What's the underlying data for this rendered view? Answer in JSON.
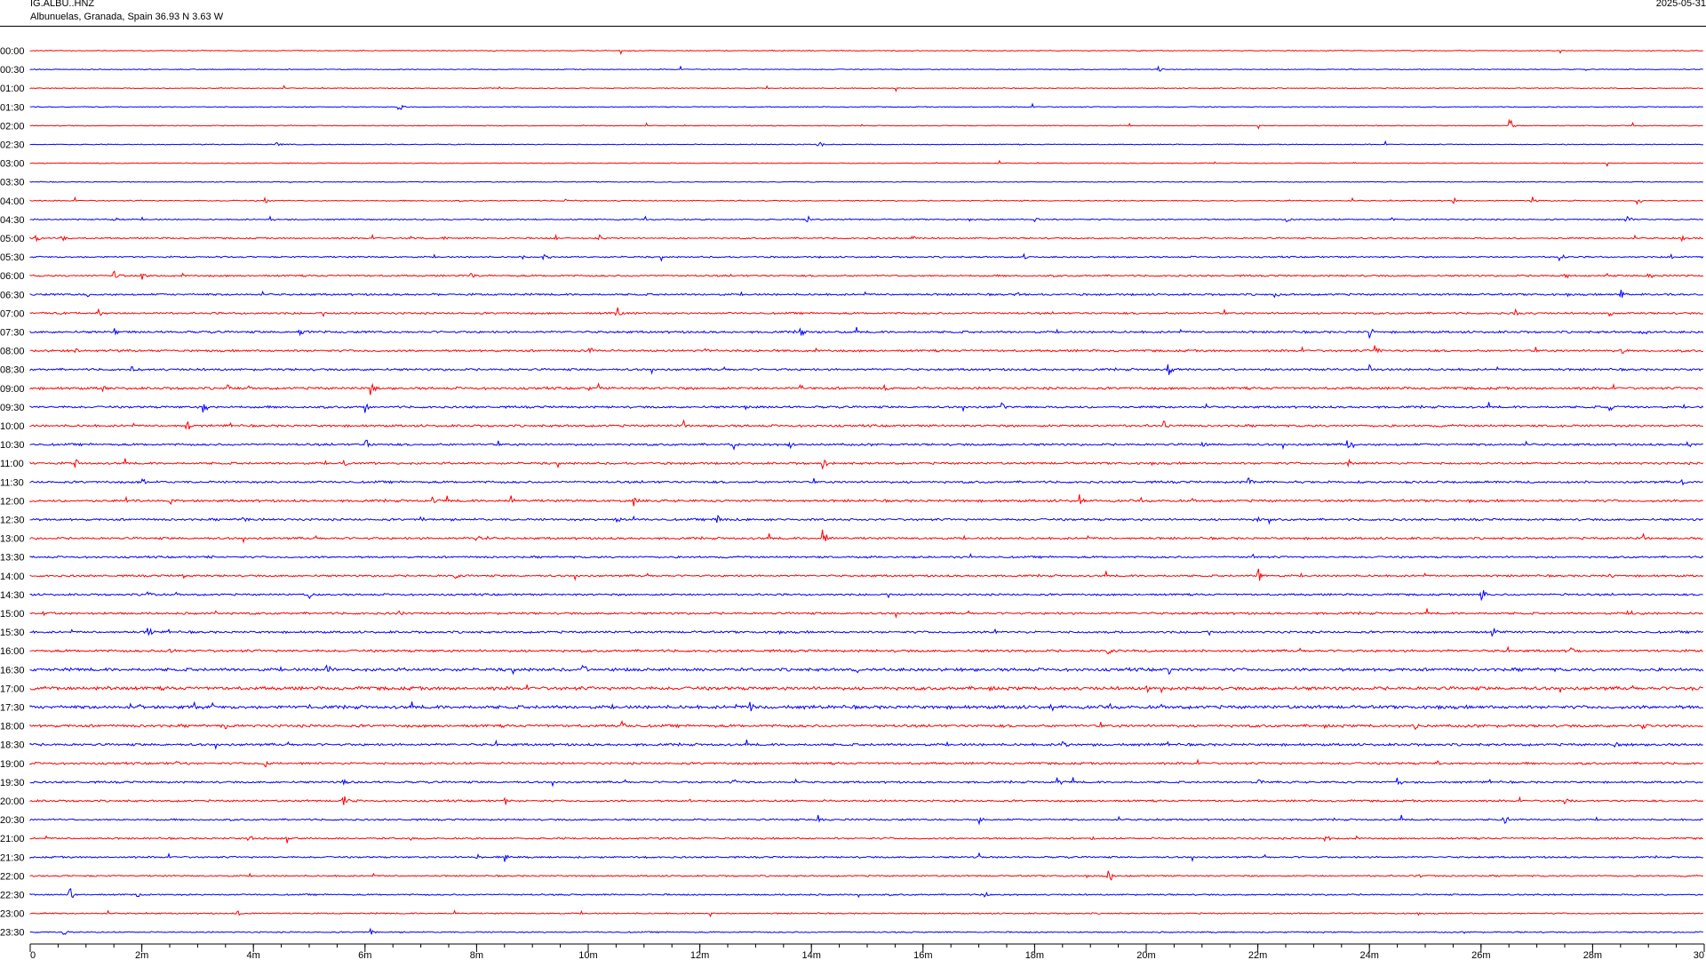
{
  "header": {
    "station": "IG.ALBU..HNZ",
    "location": "Albunuelas, Granada, Spain  36.93 N 3.63 W",
    "date": "2025-05-31"
  },
  "colors": {
    "trace_even": "#ff0000",
    "trace_odd": "#0000ff",
    "axis": "#000000",
    "background": "#ffffff"
  },
  "chart_data": {
    "type": "line",
    "title": "",
    "x_unit": "minutes",
    "xlim": [
      0,
      30
    ],
    "x_ticks": [
      {
        "value": 0,
        "label": "0"
      },
      {
        "value": 2,
        "label": "2m"
      },
      {
        "value": 4,
        "label": "4m"
      },
      {
        "value": 6,
        "label": "6m"
      },
      {
        "value": 8,
        "label": "8m"
      },
      {
        "value": 10,
        "label": "10m"
      },
      {
        "value": 12,
        "label": "12m"
      },
      {
        "value": 14,
        "label": "14m"
      },
      {
        "value": 16,
        "label": "16m"
      },
      {
        "value": 18,
        "label": "18m"
      },
      {
        "value": 20,
        "label": "20m"
      },
      {
        "value": 22,
        "label": "22m"
      },
      {
        "value": 24,
        "label": "24m"
      },
      {
        "value": 26,
        "label": "26m"
      },
      {
        "value": 28,
        "label": "28m"
      },
      {
        "value": 30,
        "label": "30"
      }
    ],
    "minor_tick_step": 0.5,
    "row_labels": [
      "00:00",
      "00:30",
      "01:00",
      "01:30",
      "02:00",
      "02:30",
      "03:00",
      "03:30",
      "04:00",
      "04:30",
      "05:00",
      "05:30",
      "06:00",
      "06:30",
      "07:00",
      "07:30",
      "08:00",
      "08:30",
      "09:00",
      "09:30",
      "10:00",
      "10:30",
      "11:00",
      "11:30",
      "12:00",
      "12:30",
      "13:00",
      "13:30",
      "14:00",
      "14:30",
      "15:00",
      "15:30",
      "16:00",
      "16:30",
      "17:00",
      "17:30",
      "18:00",
      "18:30",
      "19:00",
      "19:30",
      "20:00",
      "20:30",
      "21:00",
      "21:30",
      "22:00",
      "22:30",
      "23:00",
      "23:30"
    ],
    "noise_level": [
      0.4,
      0.4,
      0.4,
      0.4,
      0.4,
      0.4,
      0.4,
      0.4,
      0.5,
      0.6,
      0.7,
      0.7,
      0.8,
      0.9,
      0.9,
      1.0,
      1.0,
      1.0,
      1.1,
      1.0,
      1.0,
      1.0,
      1.0,
      1.0,
      1.1,
      1.0,
      1.0,
      0.9,
      0.9,
      0.9,
      1.0,
      1.0,
      1.1,
      1.4,
      1.5,
      1.5,
      1.2,
      1.1,
      1.0,
      0.9,
      0.9,
      0.8,
      0.8,
      0.8,
      0.7,
      0.7,
      0.6,
      0.6
    ],
    "events": [
      {
        "row": 1,
        "t": 20.2,
        "amp": 5
      },
      {
        "row": 1,
        "t": 24.9,
        "amp": 5
      },
      {
        "row": 3,
        "t": 6.6,
        "amp": 8
      },
      {
        "row": 4,
        "t": 26.5,
        "amp": 12
      },
      {
        "row": 5,
        "t": 4.4,
        "amp": 7
      },
      {
        "row": 5,
        "t": 14.1,
        "amp": 9
      },
      {
        "row": 6,
        "t": 23.7,
        "amp": 4
      },
      {
        "row": 8,
        "t": 4.2,
        "amp": 7
      },
      {
        "row": 8,
        "t": 9.6,
        "amp": 3
      },
      {
        "row": 8,
        "t": 25.5,
        "amp": 5
      },
      {
        "row": 8,
        "t": 26.9,
        "amp": 9
      },
      {
        "row": 8,
        "t": 28.8,
        "amp": 7
      },
      {
        "row": 9,
        "t": 1.5,
        "amp": 4
      },
      {
        "row": 9,
        "t": 4.3,
        "amp": 6
      },
      {
        "row": 9,
        "t": 13.9,
        "amp": 11
      },
      {
        "row": 9,
        "t": 18.0,
        "amp": 5
      },
      {
        "row": 9,
        "t": 22.5,
        "amp": 6
      },
      {
        "row": 9,
        "t": 24.4,
        "amp": 4
      },
      {
        "row": 9,
        "t": 28.6,
        "amp": 10
      },
      {
        "row": 10,
        "t": 0.1,
        "amp": 7
      },
      {
        "row": 10,
        "t": 0.55,
        "amp": 8
      },
      {
        "row": 10,
        "t": 6.8,
        "amp": 6
      },
      {
        "row": 10,
        "t": 7.4,
        "amp": 4
      },
      {
        "row": 10,
        "t": 9.4,
        "amp": 6
      },
      {
        "row": 10,
        "t": 10.2,
        "amp": 8
      },
      {
        "row": 10,
        "t": 15.8,
        "amp": 6
      },
      {
        "row": 10,
        "t": 29.6,
        "amp": 5
      },
      {
        "row": 11,
        "t": 3.3,
        "amp": 4
      },
      {
        "row": 11,
        "t": 8.8,
        "amp": 6
      },
      {
        "row": 11,
        "t": 9.2,
        "amp": 7
      },
      {
        "row": 11,
        "t": 17.8,
        "amp": 5
      },
      {
        "row": 11,
        "t": 27.4,
        "amp": 12
      },
      {
        "row": 11,
        "t": 29.4,
        "amp": 4
      },
      {
        "row": 12,
        "t": 1.5,
        "amp": 10
      },
      {
        "row": 12,
        "t": 2.0,
        "amp": 9
      },
      {
        "row": 12,
        "t": 7.9,
        "amp": 5
      },
      {
        "row": 12,
        "t": 27.5,
        "amp": 6
      },
      {
        "row": 12,
        "t": 29.0,
        "amp": 7
      },
      {
        "row": 13,
        "t": 1.0,
        "amp": 6
      },
      {
        "row": 13,
        "t": 7.2,
        "amp": 6
      },
      {
        "row": 13,
        "t": 17.7,
        "amp": 5
      },
      {
        "row": 13,
        "t": 22.3,
        "amp": 7
      },
      {
        "row": 13,
        "t": 28.5,
        "amp": 12
      },
      {
        "row": 14,
        "t": 1.2,
        "amp": 8
      },
      {
        "row": 14,
        "t": 10.5,
        "amp": 14
      },
      {
        "row": 14,
        "t": 26.6,
        "amp": 11
      },
      {
        "row": 14,
        "t": 28.3,
        "amp": 9
      },
      {
        "row": 15,
        "t": 1.5,
        "amp": 6
      },
      {
        "row": 15,
        "t": 4.8,
        "amp": 10
      },
      {
        "row": 15,
        "t": 13.8,
        "amp": 11
      },
      {
        "row": 15,
        "t": 24.0,
        "amp": 13
      },
      {
        "row": 15,
        "t": 28.9,
        "amp": 7
      },
      {
        "row": 16,
        "t": 0.8,
        "amp": 6
      },
      {
        "row": 16,
        "t": 10.0,
        "amp": 12
      },
      {
        "row": 16,
        "t": 12.1,
        "amp": 8
      },
      {
        "row": 16,
        "t": 24.1,
        "amp": 10
      },
      {
        "row": 16,
        "t": 28.5,
        "amp": 8
      },
      {
        "row": 17,
        "t": 1.8,
        "amp": 8
      },
      {
        "row": 17,
        "t": 20.4,
        "amp": 14
      },
      {
        "row": 17,
        "t": 24.0,
        "amp": 7
      },
      {
        "row": 18,
        "t": 1.3,
        "amp": 10
      },
      {
        "row": 18,
        "t": 3.5,
        "amp": 9
      },
      {
        "row": 18,
        "t": 6.1,
        "amp": 14
      },
      {
        "row": 18,
        "t": 10.0,
        "amp": 8
      },
      {
        "row": 18,
        "t": 13.8,
        "amp": 9
      },
      {
        "row": 18,
        "t": 15.3,
        "amp": 7
      },
      {
        "row": 19,
        "t": 3.1,
        "amp": 12
      },
      {
        "row": 19,
        "t": 6.0,
        "amp": 10
      },
      {
        "row": 19,
        "t": 12.8,
        "amp": 9
      },
      {
        "row": 19,
        "t": 17.4,
        "amp": 10
      },
      {
        "row": 19,
        "t": 28.3,
        "amp": 8
      },
      {
        "row": 20,
        "t": 2.8,
        "amp": 10
      },
      {
        "row": 20,
        "t": 11.7,
        "amp": 9
      },
      {
        "row": 20,
        "t": 20.3,
        "amp": 8
      },
      {
        "row": 21,
        "t": 6.0,
        "amp": 10
      },
      {
        "row": 21,
        "t": 12.6,
        "amp": 7
      },
      {
        "row": 21,
        "t": 13.6,
        "amp": 9
      },
      {
        "row": 21,
        "t": 21.0,
        "amp": 7
      },
      {
        "row": 21,
        "t": 23.6,
        "amp": 9
      },
      {
        "row": 21,
        "t": 29.7,
        "amp": 9
      },
      {
        "row": 22,
        "t": 0.8,
        "amp": 9
      },
      {
        "row": 22,
        "t": 5.6,
        "amp": 8
      },
      {
        "row": 22,
        "t": 14.2,
        "amp": 8
      },
      {
        "row": 22,
        "t": 23.6,
        "amp": 10
      },
      {
        "row": 23,
        "t": 2.0,
        "amp": 7
      },
      {
        "row": 23,
        "t": 21.8,
        "amp": 11
      },
      {
        "row": 23,
        "t": 29.6,
        "amp": 10
      },
      {
        "row": 24,
        "t": 1.7,
        "amp": 9
      },
      {
        "row": 24,
        "t": 2.5,
        "amp": 8
      },
      {
        "row": 24,
        "t": 7.2,
        "amp": 10
      },
      {
        "row": 24,
        "t": 8.6,
        "amp": 11
      },
      {
        "row": 24,
        "t": 10.8,
        "amp": 14
      },
      {
        "row": 24,
        "t": 18.8,
        "amp": 9
      },
      {
        "row": 25,
        "t": 3.8,
        "amp": 8
      },
      {
        "row": 25,
        "t": 7.0,
        "amp": 9
      },
      {
        "row": 25,
        "t": 10.5,
        "amp": 10
      },
      {
        "row": 25,
        "t": 12.3,
        "amp": 9
      },
      {
        "row": 25,
        "t": 22.0,
        "amp": 8
      },
      {
        "row": 26,
        "t": 8.0,
        "amp": 10
      },
      {
        "row": 26,
        "t": 14.2,
        "amp": 16
      },
      {
        "row": 26,
        "t": 28.9,
        "amp": 7
      },
      {
        "row": 27,
        "t": 3.2,
        "amp": 7
      },
      {
        "row": 27,
        "t": 21.9,
        "amp": 6
      },
      {
        "row": 28,
        "t": 2.7,
        "amp": 8
      },
      {
        "row": 28,
        "t": 7.6,
        "amp": 9
      },
      {
        "row": 28,
        "t": 22.0,
        "amp": 14
      },
      {
        "row": 28,
        "t": 28.3,
        "amp": 9
      },
      {
        "row": 29,
        "t": 2.1,
        "amp": 8
      },
      {
        "row": 29,
        "t": 5.0,
        "amp": 9
      },
      {
        "row": 29,
        "t": 26.0,
        "amp": 12
      },
      {
        "row": 29,
        "t": 27.4,
        "amp": 11
      },
      {
        "row": 30,
        "t": 0.2,
        "amp": 7
      },
      {
        "row": 30,
        "t": 3.3,
        "amp": 8
      },
      {
        "row": 30,
        "t": 6.6,
        "amp": 7
      },
      {
        "row": 30,
        "t": 28.7,
        "amp": 6
      },
      {
        "row": 31,
        "t": 2.1,
        "amp": 12
      },
      {
        "row": 31,
        "t": 17.3,
        "amp": 9
      },
      {
        "row": 31,
        "t": 19.5,
        "amp": 9
      },
      {
        "row": 31,
        "t": 26.2,
        "amp": 9
      },
      {
        "row": 32,
        "t": 2.5,
        "amp": 8
      },
      {
        "row": 32,
        "t": 19.3,
        "amp": 10
      },
      {
        "row": 32,
        "t": 27.6,
        "amp": 10
      },
      {
        "row": 33,
        "t": 5.3,
        "amp": 12
      },
      {
        "row": 33,
        "t": 9.9,
        "amp": 10
      },
      {
        "row": 33,
        "t": 14.8,
        "amp": 9
      },
      {
        "row": 33,
        "t": 20.4,
        "amp": 8
      },
      {
        "row": 34,
        "t": 1.4,
        "amp": 8
      },
      {
        "row": 34,
        "t": 20.0,
        "amp": 7
      },
      {
        "row": 34,
        "t": 29.8,
        "amp": 7
      },
      {
        "row": 35,
        "t": 12.9,
        "amp": 10
      },
      {
        "row": 35,
        "t": 18.3,
        "amp": 9
      },
      {
        "row": 36,
        "t": 3.5,
        "amp": 9
      },
      {
        "row": 36,
        "t": 10.6,
        "amp": 11
      },
      {
        "row": 36,
        "t": 24.8,
        "amp": 9
      },
      {
        "row": 36,
        "t": 28.9,
        "amp": 9
      },
      {
        "row": 37,
        "t": 18.5,
        "amp": 9
      },
      {
        "row": 37,
        "t": 28.4,
        "amp": 11
      },
      {
        "row": 38,
        "t": 2.6,
        "amp": 7
      },
      {
        "row": 38,
        "t": 4.2,
        "amp": 8
      },
      {
        "row": 38,
        "t": 25.2,
        "amp": 9
      },
      {
        "row": 39,
        "t": 5.6,
        "amp": 12
      },
      {
        "row": 39,
        "t": 12.6,
        "amp": 10
      },
      {
        "row": 39,
        "t": 18.4,
        "amp": 10
      },
      {
        "row": 39,
        "t": 22.0,
        "amp": 9
      },
      {
        "row": 39,
        "t": 24.5,
        "amp": 11
      },
      {
        "row": 40,
        "t": 5.6,
        "amp": 14
      },
      {
        "row": 40,
        "t": 8.5,
        "amp": 8
      },
      {
        "row": 40,
        "t": 11.8,
        "amp": 7
      },
      {
        "row": 40,
        "t": 27.5,
        "amp": 7
      },
      {
        "row": 41,
        "t": 14.1,
        "amp": 10
      },
      {
        "row": 41,
        "t": 17.0,
        "amp": 7
      },
      {
        "row": 41,
        "t": 26.4,
        "amp": 12
      },
      {
        "row": 42,
        "t": 3.9,
        "amp": 11
      },
      {
        "row": 42,
        "t": 4.6,
        "amp": 10
      },
      {
        "row": 42,
        "t": 6.8,
        "amp": 7
      },
      {
        "row": 42,
        "t": 19.0,
        "amp": 10
      },
      {
        "row": 42,
        "t": 23.2,
        "amp": 10
      },
      {
        "row": 43,
        "t": 8.0,
        "amp": 9
      },
      {
        "row": 43,
        "t": 8.5,
        "amp": 10
      },
      {
        "row": 43,
        "t": 17.0,
        "amp": 6
      },
      {
        "row": 44,
        "t": 19.3,
        "amp": 12
      },
      {
        "row": 44,
        "t": 24.9,
        "amp": 7
      },
      {
        "row": 45,
        "t": 0.7,
        "amp": 14
      },
      {
        "row": 45,
        "t": 1.9,
        "amp": 6
      },
      {
        "row": 45,
        "t": 17.1,
        "amp": 6
      },
      {
        "row": 46,
        "t": 3.7,
        "amp": 7
      },
      {
        "row": 46,
        "t": 7.6,
        "amp": 5
      },
      {
        "row": 47,
        "t": 0.6,
        "amp": 8
      },
      {
        "row": 47,
        "t": 6.1,
        "amp": 7
      }
    ]
  }
}
